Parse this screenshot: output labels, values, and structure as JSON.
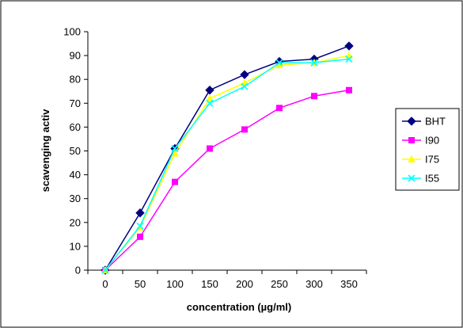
{
  "chart_data": {
    "type": "line",
    "title": "",
    "xlabel": "concentration (µg/ml)",
    "ylabel": "scavenging activ",
    "categories": [
      "0",
      "50",
      "100",
      "150",
      "200",
      "250",
      "300",
      "350"
    ],
    "ylim": [
      0,
      100
    ],
    "ytick_step": 10,
    "grid": false,
    "legend_position": "right",
    "series": [
      {
        "name": "BHT",
        "color": "#000080",
        "marker": "diamond",
        "values": [
          0,
          24,
          51,
          75.5,
          82,
          87.5,
          88.5,
          94
        ]
      },
      {
        "name": "I90",
        "color": "#ff00ff",
        "marker": "square",
        "values": [
          0,
          14,
          37,
          51,
          59,
          68,
          73,
          75.5
        ]
      },
      {
        "name": "I75",
        "color": "#ffff00",
        "marker": "triangle",
        "values": [
          0,
          18,
          49,
          72,
          78.5,
          86,
          87,
          90
        ]
      },
      {
        "name": "I55",
        "color": "#00ffff",
        "marker": "x",
        "values": [
          0,
          18.5,
          51,
          70,
          77,
          87,
          87,
          88.5
        ]
      }
    ]
  }
}
